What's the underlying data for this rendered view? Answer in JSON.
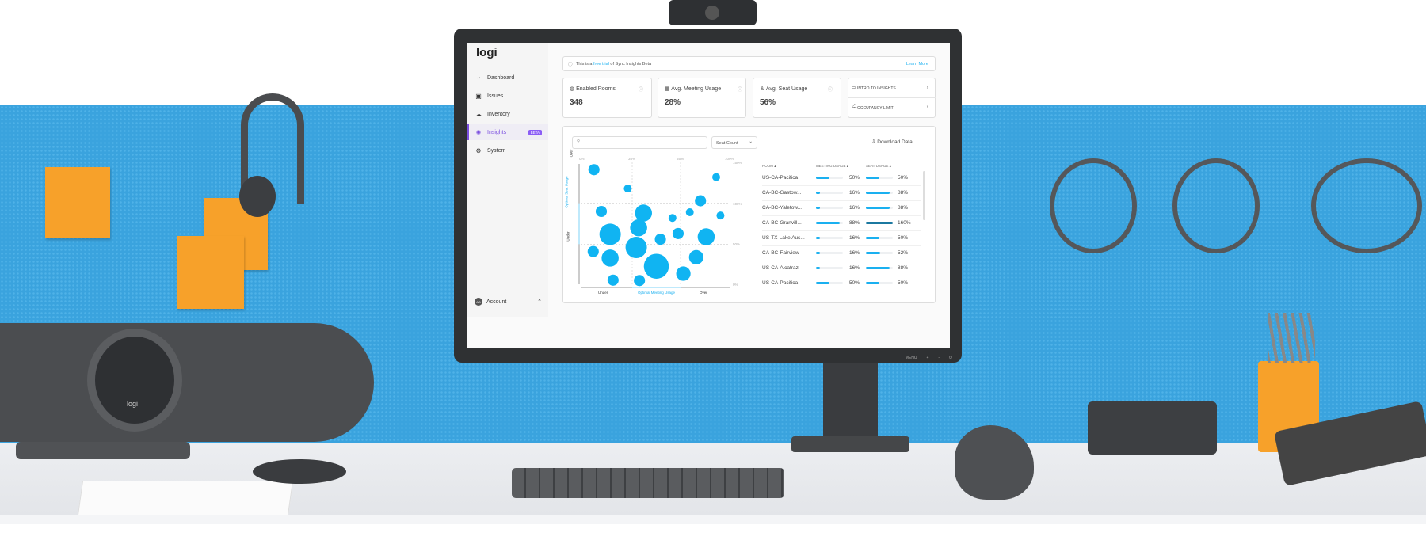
{
  "app": {
    "logo": "logi"
  },
  "sidebar": {
    "items": [
      {
        "label": "Dashboard",
        "icon": "dashboard-gauge-icon"
      },
      {
        "label": "Issues",
        "icon": "issues-alert-icon"
      },
      {
        "label": "Inventory",
        "icon": "cloud-icon"
      },
      {
        "label": "Insights",
        "icon": "lightbulb-icon",
        "badge": "BETA",
        "active": true
      },
      {
        "label": "System",
        "icon": "gear-icon"
      }
    ],
    "account": {
      "initials": "AB",
      "label": "Account"
    }
  },
  "banner": {
    "prefix": "This is a ",
    "link": "free trial",
    "suffix": " of Sync Insights Beta",
    "action": "Learn More"
  },
  "cards": [
    {
      "title": "Enabled Rooms",
      "value": "348",
      "icon": "rooms-icon"
    },
    {
      "title": "Avg. Meeting Usage",
      "value": "28%",
      "icon": "calendar-icon"
    },
    {
      "title": "Avg. Seat Usage",
      "value": "56%",
      "icon": "seat-icon"
    }
  ],
  "links": [
    {
      "label": "INTRO TO INSIGHTS",
      "icon": "video-icon"
    },
    {
      "label": "OCCUPANCY LIMIT",
      "icon": "bell-icon"
    }
  ],
  "toolbar": {
    "search_placeholder": "",
    "dropdown": "Seat Count",
    "download": "Download Data"
  },
  "chart_data": {
    "type": "scatter",
    "variant": "bubble",
    "x_ticks": [
      "0%",
      "35%",
      "65%",
      "100%"
    ],
    "y_ticks": [
      "0%",
      "50%",
      "100%",
      "150%"
    ],
    "x_zones": [
      "Under",
      "Optimal Meeting Usage",
      "Over"
    ],
    "y_zones": [
      "Under",
      "Optimal Seat Usage",
      "Over"
    ],
    "xlim": [
      0,
      100
    ],
    "ylim": [
      0,
      150
    ],
    "grid": "dashed at 35%, 65% (x) and 50%, 100% (y)",
    "color": "#10b4f2",
    "accent": "#1ab0f0",
    "points": [
      {
        "x": 9,
        "y": 141,
        "size": 3
      },
      {
        "x": 32,
        "y": 118,
        "size": 1.5
      },
      {
        "x": 14,
        "y": 90,
        "size": 3
      },
      {
        "x": 42,
        "y": 88,
        "size": 7
      },
      {
        "x": 60,
        "y": 82,
        "size": 1.5
      },
      {
        "x": 71.5,
        "y": 89,
        "size": 1.5
      },
      {
        "x": 79,
        "y": 103,
        "size": 3
      },
      {
        "x": 90,
        "y": 132,
        "size": 1.5
      },
      {
        "x": 93,
        "y": 85,
        "size": 1.5
      },
      {
        "x": 20,
        "y": 62,
        "size": 11
      },
      {
        "x": 39,
        "y": 70,
        "size": 7
      },
      {
        "x": 52.5,
        "y": 56,
        "size": 3
      },
      {
        "x": 63.5,
        "y": 63,
        "size": 3
      },
      {
        "x": 83,
        "y": 59,
        "size": 7
      },
      {
        "x": 8.5,
        "y": 41,
        "size": 3
      },
      {
        "x": 20,
        "y": 33,
        "size": 7
      },
      {
        "x": 37.5,
        "y": 46,
        "size": 11
      },
      {
        "x": 50,
        "y": 23,
        "size": 15
      },
      {
        "x": 76,
        "y": 34,
        "size": 5
      },
      {
        "x": 67,
        "y": 14,
        "size": 5
      },
      {
        "x": 22,
        "y": 6,
        "size": 3
      },
      {
        "x": 39.5,
        "y": 5.5,
        "size": 3
      }
    ]
  },
  "table": {
    "headers": [
      "ROOM",
      "MEETING USAGE",
      "SEAT USAGE"
    ],
    "rows": [
      {
        "room": "US-CA-Pacifica",
        "meeting": 50,
        "meeting_label": "50%",
        "seat": 50,
        "seat_label": "50%"
      },
      {
        "room": "CA-BC-Gastow...",
        "meeting": 16,
        "meeting_label": "16%",
        "seat": 88,
        "seat_label": "88%"
      },
      {
        "room": "CA-BC-Yaletow...",
        "meeting": 16,
        "meeting_label": "16%",
        "seat": 88,
        "seat_label": "88%"
      },
      {
        "room": "CA-BC-Granvill...",
        "meeting": 88,
        "meeting_label": "88%",
        "seat": 160,
        "seat_label": "160%"
      },
      {
        "room": "US-TX-Lake Aus...",
        "meeting": 16,
        "meeting_label": "16%",
        "seat": 50,
        "seat_label": "50%"
      },
      {
        "room": "CA-BC-Fairview",
        "meeting": 16,
        "meeting_label": "16%",
        "seat": 52,
        "seat_label": "52%"
      },
      {
        "room": "US-CA-Alcatraz",
        "meeting": 16,
        "meeting_label": "16%",
        "seat": 88,
        "seat_label": "88%"
      },
      {
        "room": "US-CA-Pacifica",
        "meeting": 50,
        "meeting_label": "50%",
        "seat": 50,
        "seat_label": "50%"
      }
    ]
  },
  "monitor": {
    "buttons": [
      "MENU",
      "+",
      "-",
      "power-icon"
    ]
  },
  "scene": {
    "camera_logo": "logi"
  }
}
